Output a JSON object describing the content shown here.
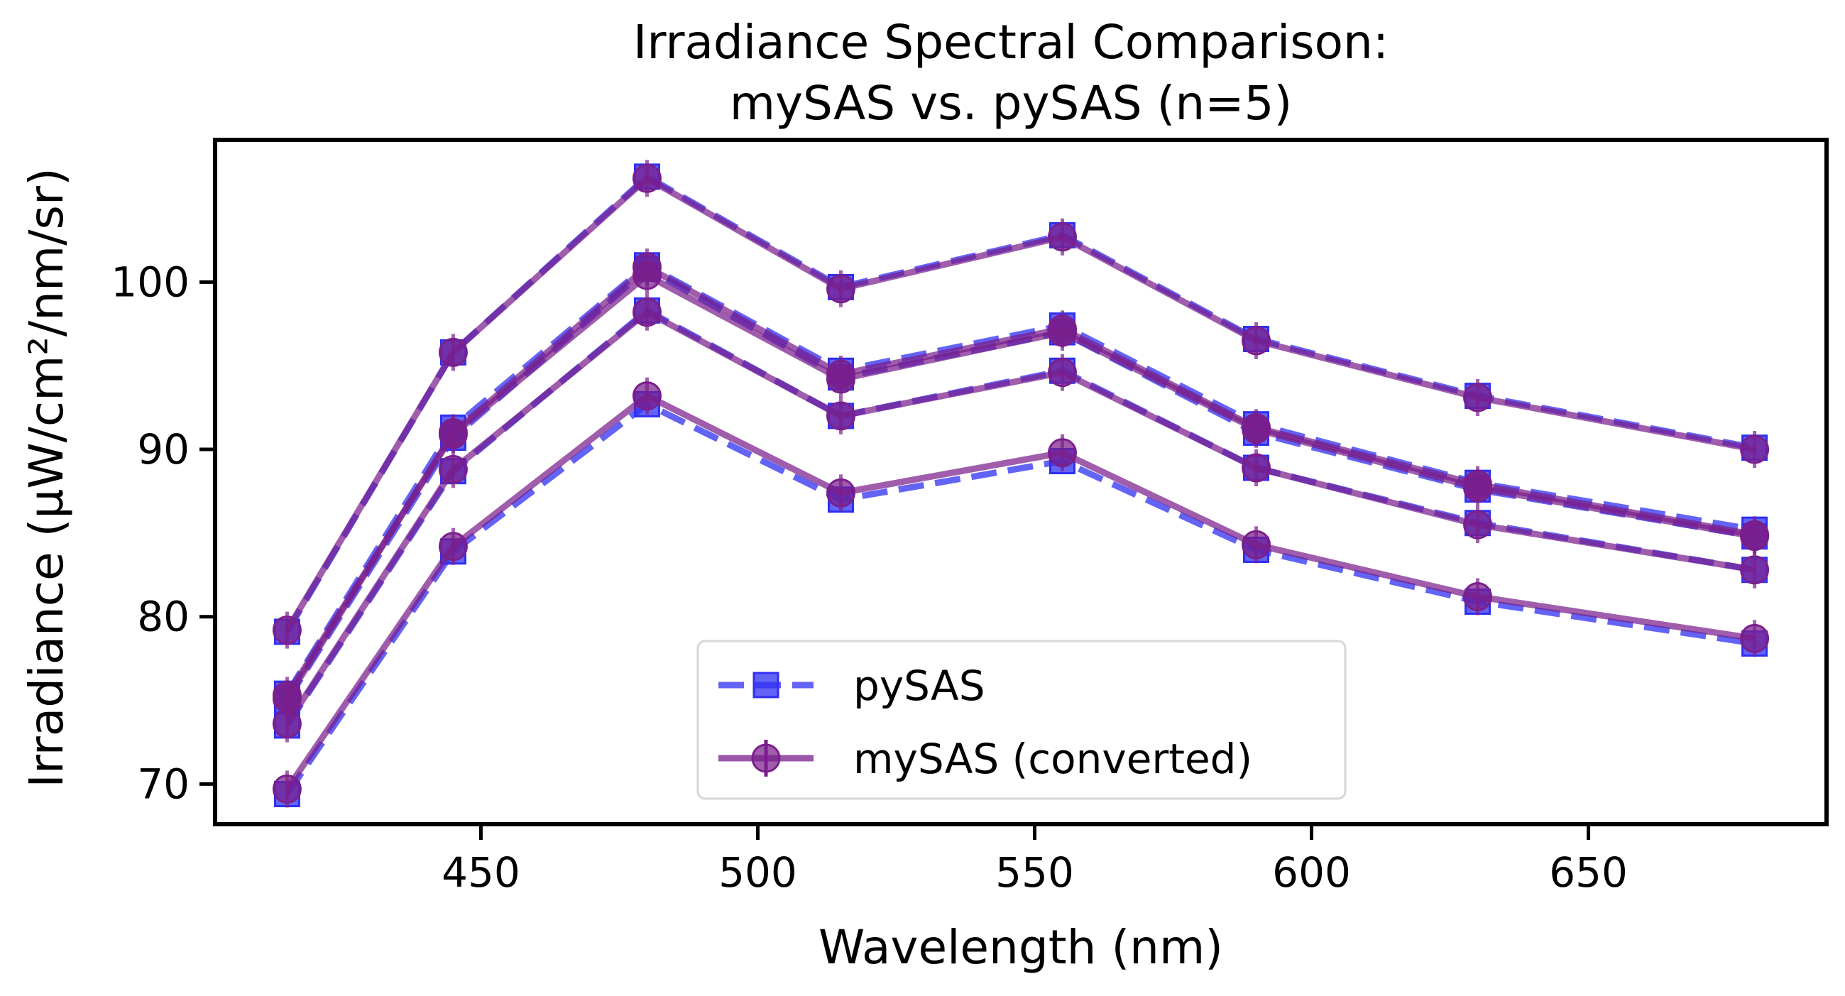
{
  "chart_data": {
    "type": "line",
    "title": "Irradiance Spectral Comparison:",
    "subtitle": "mySAS vs. pySAS (n=5)",
    "xlabel": "Wavelength (nm)",
    "ylabel": "Irradiance (µW/cm²/nm/sr)",
    "xlim": [
      402,
      693
    ],
    "ylim": [
      67.6,
      108.5
    ],
    "xticks": [
      450,
      500,
      550,
      600,
      650
    ],
    "yticks": [
      70,
      80,
      90,
      100
    ],
    "grid": false,
    "legend_position": "lower center",
    "x": [
      415,
      445,
      480,
      515,
      555,
      590,
      630,
      680
    ],
    "legend": [
      {
        "label": "pySAS",
        "color": "#2f2ff2",
        "marker": "square",
        "linestyle": "dashed"
      },
      {
        "label": "mySAS (converted)",
        "color": "#7a1f8c",
        "marker": "circle",
        "linestyle": "solid"
      }
    ],
    "series": [
      {
        "group": "pySAS",
        "values": [
          79.1,
          95.8,
          106.3,
          99.7,
          102.8,
          96.6,
          93.2,
          90.1
        ]
      },
      {
        "group": "pySAS",
        "values": [
          75.4,
          91.3,
          101.0,
          94.7,
          97.4,
          91.5,
          88.0,
          85.2
        ]
      },
      {
        "group": "pySAS",
        "values": [
          73.5,
          88.7,
          98.3,
          92.0,
          94.7,
          88.9,
          85.6,
          82.8
        ]
      },
      {
        "group": "pySAS",
        "values": [
          69.4,
          83.9,
          92.7,
          87.0,
          89.3,
          84.0,
          80.9,
          78.4
        ]
      },
      {
        "group": "pySAS",
        "values": [
          75.0,
          90.7,
          100.8,
          94.3,
          97.0,
          91.0,
          87.6,
          84.8
        ]
      },
      {
        "group": "mySAS (converted)",
        "values": [
          79.2,
          95.8,
          106.2,
          99.6,
          102.7,
          96.5,
          93.1,
          90.0
        ]
      },
      {
        "group": "mySAS (converted)",
        "values": [
          75.3,
          90.9,
          100.4,
          94.2,
          97.0,
          91.2,
          87.7,
          84.8
        ]
      },
      {
        "group": "mySAS (converted)",
        "values": [
          73.6,
          88.8,
          98.2,
          92.0,
          94.6,
          88.9,
          85.5,
          82.8
        ]
      },
      {
        "group": "mySAS (converted)",
        "values": [
          69.7,
          84.2,
          93.2,
          87.4,
          89.8,
          84.3,
          81.2,
          78.7
        ]
      },
      {
        "group": "mySAS (converted)",
        "values": [
          75.1,
          91.0,
          100.9,
          94.5,
          97.2,
          91.3,
          87.9,
          84.9
        ]
      }
    ]
  }
}
